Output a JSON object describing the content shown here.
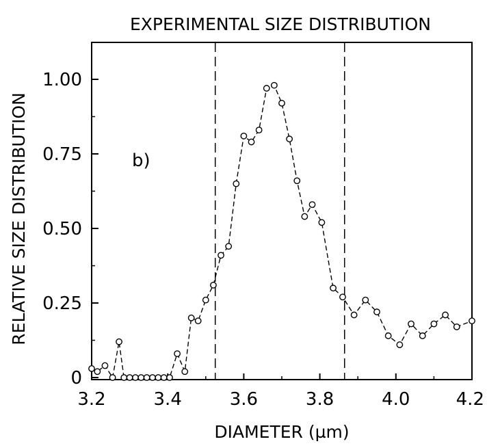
{
  "chart_data": {
    "type": "line",
    "title": "EXPERIMENTAL SIZE DISTRIBUTION",
    "xlabel": "DIAMETER (µm)",
    "ylabel": "RELATIVE SIZE DISTRIBUTION",
    "panel_label": "b)",
    "xlim": [
      3.2,
      4.2
    ],
    "ylim": [
      0,
      1.1
    ],
    "x_ticks": [
      3.2,
      3.4,
      3.6,
      3.8,
      4.0,
      4.2
    ],
    "x_tick_labels": [
      "3.2",
      "3.4",
      "3.6",
      "3.8",
      "4.0",
      "4.2"
    ],
    "y_ticks": [
      0,
      0.25,
      0.5,
      0.75,
      1.0
    ],
    "y_tick_labels": [
      "0",
      "0.25",
      "0.50",
      "0.75",
      "1.00"
    ],
    "grid": false,
    "vertical_lines": [
      3.525,
      3.865
    ],
    "series": [
      {
        "marker": "open-circle",
        "line_style": "dashed",
        "color": "#000000",
        "x": [
          3.2,
          3.215,
          3.235,
          3.255,
          3.272,
          3.285,
          3.3,
          3.315,
          3.33,
          3.345,
          3.36,
          3.375,
          3.39,
          3.405,
          3.425,
          3.445,
          3.462,
          3.48,
          3.5,
          3.52,
          3.54,
          3.56,
          3.58,
          3.6,
          3.62,
          3.64,
          3.66,
          3.68,
          3.7,
          3.72,
          3.74,
          3.76,
          3.78,
          3.805,
          3.835,
          3.86,
          3.89,
          3.92,
          3.95,
          3.98,
          4.01,
          4.04,
          4.07,
          4.1,
          4.13,
          4.16,
          4.2
        ],
        "y": [
          0.03,
          0.02,
          0.04,
          0.0,
          0.12,
          0.0,
          0.0,
          0.0,
          0.0,
          0.0,
          0.0,
          0.0,
          0.0,
          0.0,
          0.08,
          0.02,
          0.2,
          0.19,
          0.26,
          0.31,
          0.41,
          0.44,
          0.65,
          0.81,
          0.79,
          0.83,
          0.97,
          0.98,
          0.92,
          0.8,
          0.66,
          0.54,
          0.58,
          0.52,
          0.3,
          0.27,
          0.21,
          0.26,
          0.22,
          0.14,
          0.11,
          0.18,
          0.14,
          0.18,
          0.21,
          0.17,
          0.19
        ]
      }
    ]
  }
}
